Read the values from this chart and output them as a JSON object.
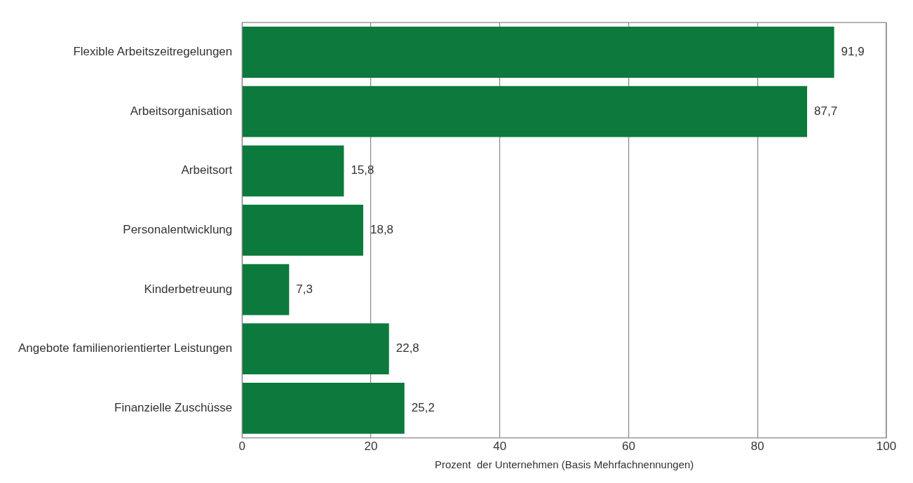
{
  "chart_data": {
    "type": "bar",
    "orientation": "horizontal",
    "xlabel": "Prozent  der Unternehmen (Basis Mehrfachnennungen)",
    "categories": [
      "Flexible Arbeitszeitregelungen",
      "Arbeitsorganisation",
      "Arbeitsort",
      "Personalentwicklung",
      "Kinderbetreuung",
      "Angebote familienorientierter Leistungen",
      "Finanzielle Zuschüsse"
    ],
    "values": [
      91.9,
      87.7,
      15.8,
      18.8,
      7.3,
      22.8,
      25.2
    ],
    "value_labels": [
      "91,9",
      "87,7",
      "15,8",
      "18,8",
      "7,3",
      "22,8",
      "25,2"
    ],
    "color": "#0b7a3c",
    "xlim": [
      0,
      100
    ],
    "xticks": [
      0,
      20,
      40,
      60,
      80,
      100
    ],
    "grid": "x"
  }
}
